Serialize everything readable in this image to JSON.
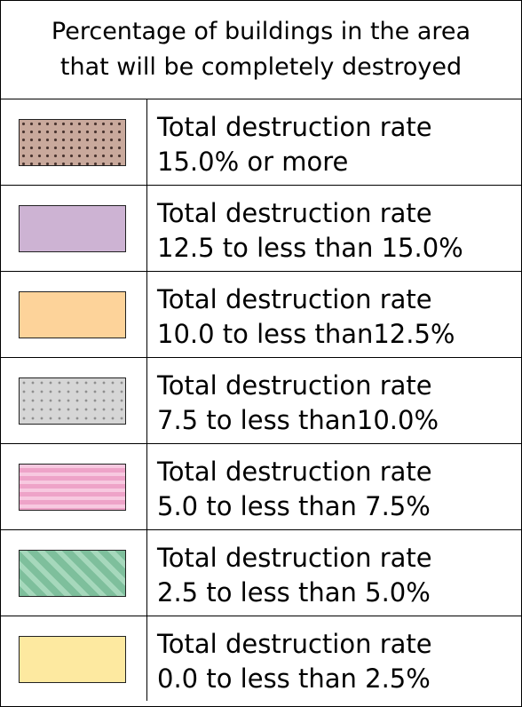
{
  "legend": {
    "title_line1": "Percentage of buildings in the area",
    "title_line2": "that will be completely destroyed",
    "items": [
      {
        "line1": "Total destruction rate",
        "line2": "15.0% or more",
        "color": "#c9a99c",
        "pattern": "dotted"
      },
      {
        "line1": "Total destruction rate",
        "line2": "12.5 to less than 15.0%",
        "color": "#cdb3d3",
        "pattern": "solid"
      },
      {
        "line1": "Total destruction rate",
        "line2": "10.0 to less than12.5%",
        "color": "#fdd39a",
        "pattern": "solid"
      },
      {
        "line1": "Total destruction rate",
        "line2": "7.5 to less than10.0%",
        "color": "#d6d6d6",
        "pattern": "dotted"
      },
      {
        "line1": "Total destruction rate",
        "line2": "5.0 to less than 7.5%",
        "color": "#f3b3d3",
        "pattern": "wavy stripes"
      },
      {
        "line1": "Total destruction rate",
        "line2": "2.5 to less than 5.0%",
        "color": "#86c7a5",
        "pattern": "diagonal stripes"
      },
      {
        "line1": "Total destruction rate",
        "line2": "0.0 to less than 2.5%",
        "color": "#fde9a0",
        "pattern": "solid"
      }
    ]
  }
}
